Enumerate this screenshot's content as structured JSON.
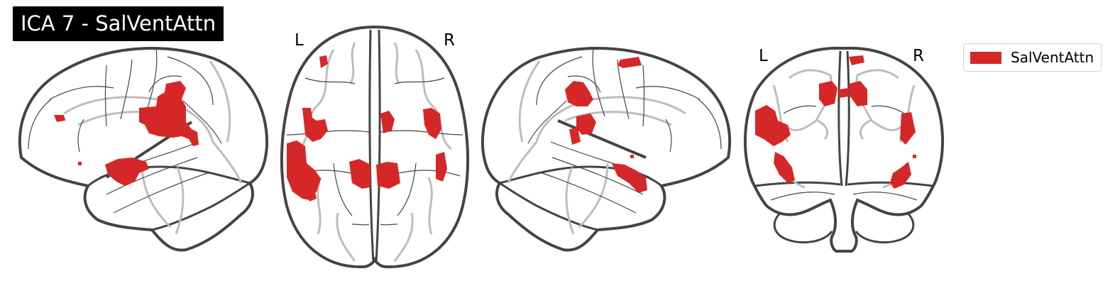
{
  "title": "ICA 7 - SalVentAttn",
  "views": {
    "axial": {
      "left_label": "L",
      "right_label": "R"
    },
    "coronal": {
      "left_label": "L",
      "right_label": "R"
    }
  },
  "legend": {
    "label": "SalVentAttn",
    "color": "#d62728"
  },
  "colors": {
    "activation": "#d62728",
    "outline": "#444444",
    "sulci": "#bdbdbd",
    "title_bg": "#000000"
  }
}
